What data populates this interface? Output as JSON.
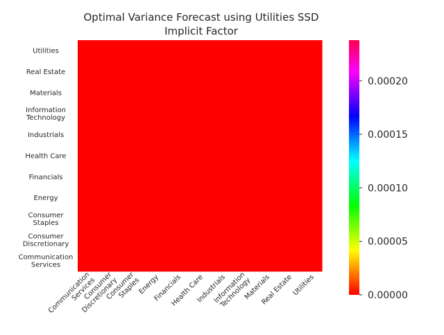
{
  "chart_data": {
    "type": "heatmap",
    "title_lines": [
      "Optimal Variance Forecast using Utilities SSD",
      "Implicit Factor"
    ],
    "rows": [
      "Utilities",
      "Real Estate",
      "Materials",
      "Information Technology",
      "Industrials",
      "Health Care",
      "Financials",
      "Energy",
      "Consumer Staples",
      "Consumer Discretionary",
      "Communication Services"
    ],
    "columns": [
      "Communication Services",
      "Consumer Discretionary",
      "Consumer Staples",
      "Energy",
      "Financials",
      "Health Care",
      "Industrials",
      "Information Technology",
      "Materials",
      "Real Estate",
      "Utilities"
    ],
    "values": [
      [
        0.0,
        0.0,
        0.0,
        0.0,
        0.0,
        0.0,
        0.0,
        0.0,
        0.0,
        0.0,
        0.0
      ],
      [
        0.0,
        0.0,
        0.0,
        0.0,
        0.0,
        0.0,
        0.0,
        0.0,
        0.0,
        0.0,
        0.0
      ],
      [
        0.0,
        0.0,
        0.0,
        0.0,
        0.0,
        0.0,
        0.0,
        0.0,
        0.0,
        0.0,
        0.0
      ],
      [
        0.0,
        0.0,
        0.0,
        0.0,
        0.0,
        0.0,
        0.0,
        0.0,
        0.0,
        0.0,
        0.0
      ],
      [
        0.0,
        0.0,
        0.0,
        0.0,
        0.0,
        0.0,
        0.0,
        0.0,
        0.0,
        0.0,
        0.0
      ],
      [
        0.0,
        0.0,
        0.0,
        0.0,
        0.0,
        0.0,
        0.0,
        0.0,
        0.0,
        0.0,
        0.0
      ],
      [
        0.0,
        0.0,
        0.0,
        0.0,
        0.0,
        0.0,
        0.0,
        0.0,
        0.0,
        0.0,
        0.0
      ],
      [
        0.0,
        0.0,
        0.0,
        0.0,
        0.0,
        0.0,
        0.0,
        0.0,
        0.0,
        0.0,
        0.0
      ],
      [
        0.0,
        0.0,
        0.0,
        0.0,
        0.0,
        0.0,
        0.0,
        0.0,
        0.0,
        0.0,
        0.0
      ],
      [
        0.0,
        0.0,
        0.0,
        0.0,
        0.0,
        0.0,
        0.0,
        0.0,
        0.0,
        0.0,
        0.0
      ],
      [
        0.0,
        0.0,
        0.0,
        0.0,
        0.0,
        0.0,
        0.0,
        0.0,
        0.0,
        0.0,
        0.0
      ]
    ],
    "colorbar": {
      "colormap": "hsv",
      "vmin": 0.0,
      "vmax": 0.000238,
      "ticks": [
        0.0,
        5e-05,
        0.0001,
        0.00015,
        0.0002
      ],
      "tick_labels": [
        "0.00000",
        "0.00005",
        "0.00010",
        "0.00015",
        "0.00020"
      ]
    },
    "grid": false,
    "legend": "colorbar at right"
  }
}
